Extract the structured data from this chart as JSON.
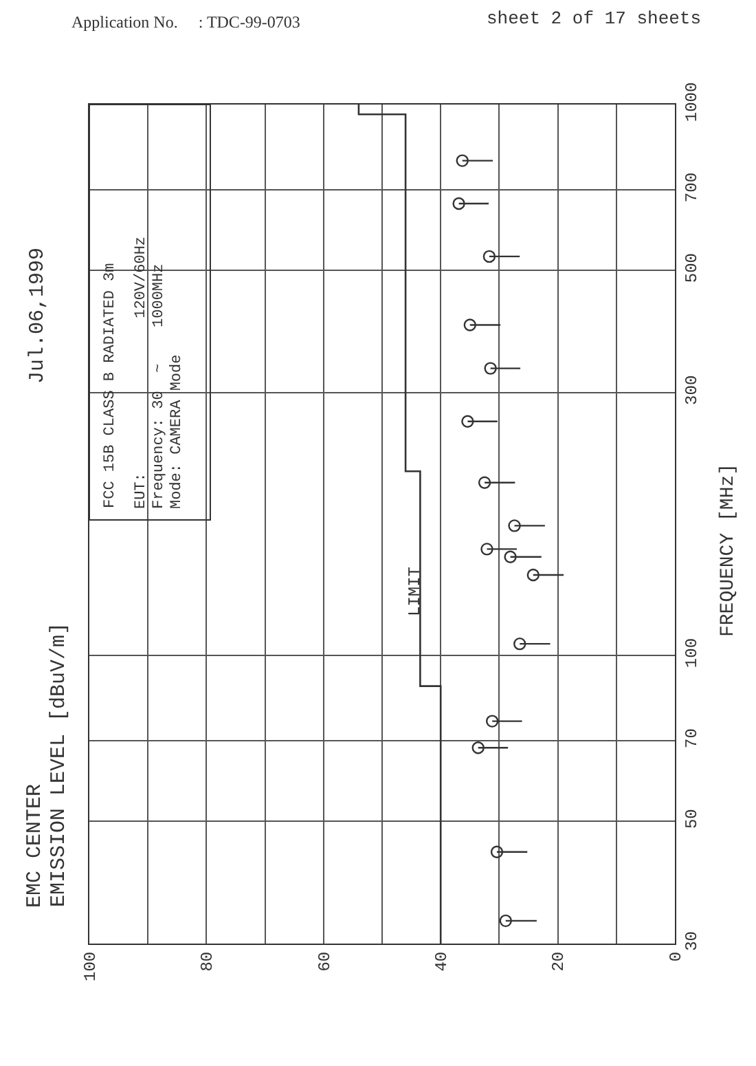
{
  "chart_data": {
    "type": "scatter",
    "orientation": "horizontal",
    "title": "EMC CENTER",
    "subtitle": "Jul.06,1999",
    "ylabel": "FREQUENCY [MHz]",
    "annotations": [
      "EMISSION LEVEL [dBuV/m]",
      "Application No.     : TDC-99-0703",
      "sheet 2 of 17 sheets",
      "FCC 15B CLASS B RADIATED 3m",
      "EUT:                 120V/60Hz",
      "Frequency: 30  ~    1000MHz",
      "Mode: CAMERA Mode",
      "LIMIT"
    ],
    "log": "y",
    "grid": true,
    "xlim": [
      100,
      0
    ],
    "xticks": [
      100,
      {
        "value": 90,
        "label": null
      },
      80,
      {
        "value": 70,
        "label": null
      },
      60,
      {
        "value": 50,
        "label": null
      },
      40,
      {
        "value": 30,
        "label": null
      },
      20,
      {
        "value": 10,
        "label": null
      },
      0
    ],
    "ylim": [
      30,
      1000
    ],
    "yticks": [
      30,
      50,
      70,
      100,
      300,
      500,
      700,
      1000
    ],
    "series": [
      {
        "type": "step",
        "color": "#333333",
        "marker": "none",
        "x": [
          30,
          88,
          216,
          960,
          1000
        ],
        "values": [
          40,
          43.5,
          46,
          54,
          54
        ]
      },
      {
        "color": "#333333",
        "marker": "circle",
        "x": [
          33,
          44,
          68,
          76,
          105,
          140,
          151,
          156,
          172,
          206,
          266,
          332,
          398,
          530,
          661,
          791
        ],
        "values": [
          28.9,
          30.4,
          33.6,
          31.2,
          26.5,
          24.2,
          28.1,
          32.1,
          27.4,
          32.5,
          35.4,
          31.5,
          35.0,
          31.7,
          36.9,
          36.3
        ],
        "errors": [
          [
            23.6,
            28.9
          ],
          [
            25.2,
            30.4
          ],
          [
            28.5,
            33.6
          ],
          [
            26.1,
            31.2
          ],
          [
            21.3,
            26.5
          ],
          [
            19.0,
            24.2
          ],
          [
            22.8,
            28.1
          ],
          [
            27.0,
            32.1
          ],
          [
            22.2,
            27.4
          ],
          [
            27.3,
            32.5
          ],
          [
            30.3,
            35.4
          ],
          [
            26.4,
            31.5
          ],
          [
            29.8,
            35.0
          ],
          [
            26.5,
            31.7
          ],
          [
            31.8,
            36.9
          ],
          [
            31.1,
            36.3
          ]
        ]
      }
    ]
  }
}
